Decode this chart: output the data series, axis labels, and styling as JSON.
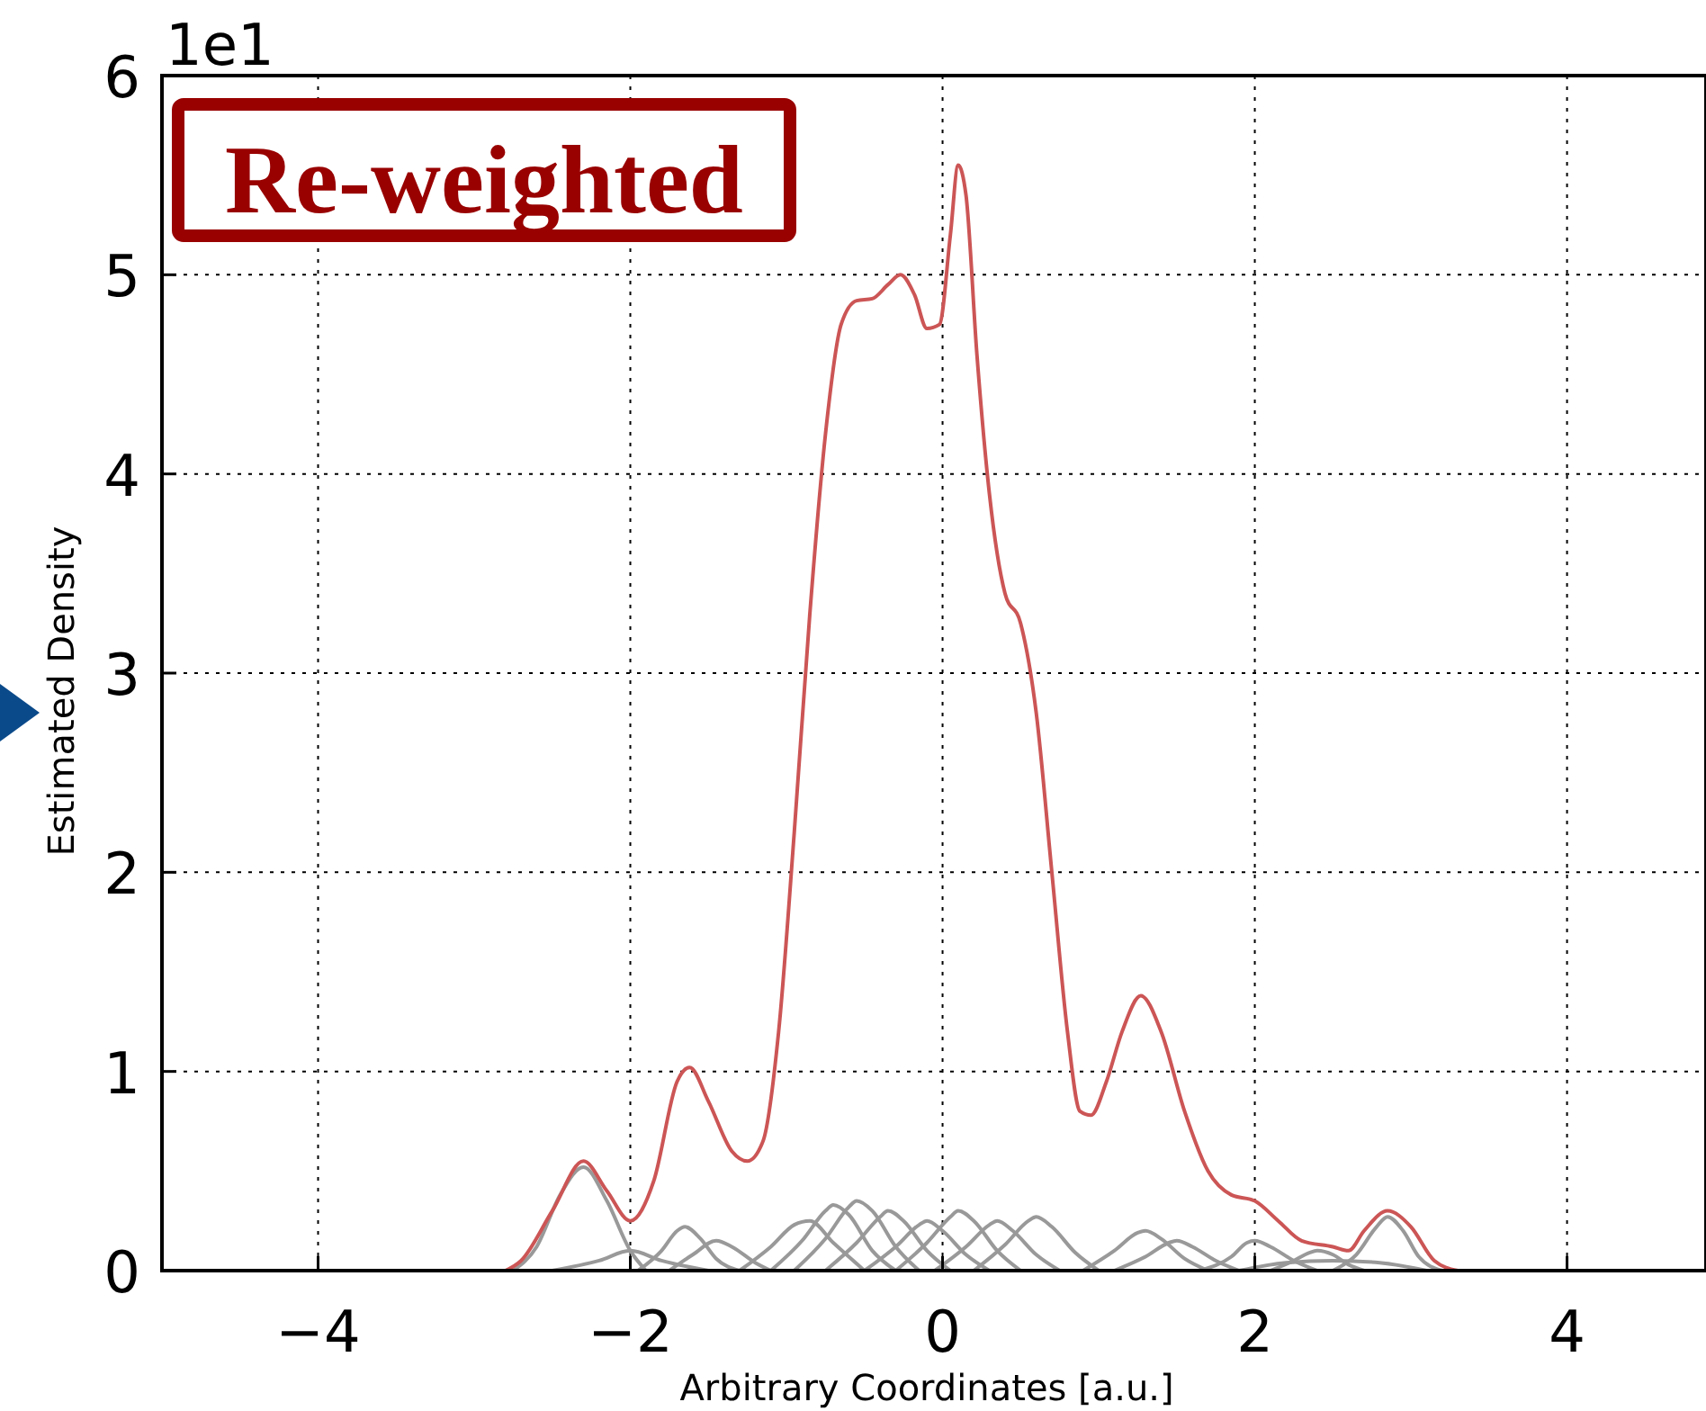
{
  "chart_data": {
    "type": "line",
    "title": "Re-weighted",
    "xlabel": "Arbitrary Coordinates [a.u.]",
    "ylabel": "Estimated Density",
    "annotations": [
      "1e1"
    ],
    "xlim": [
      -5,
      4.89
    ],
    "ylim": [
      0,
      6
    ],
    "xticks": [
      {
        "value": -4,
        "label": "−4"
      },
      {
        "value": -2,
        "label": "−2"
      },
      0,
      2,
      4
    ],
    "yticks": [
      0,
      1,
      2,
      3,
      4,
      5,
      6
    ],
    "grid": true,
    "line_style": "solid",
    "series": [
      {
        "color": "#999999",
        "x": [
          -2.75,
          -2.6,
          -2.45,
          -2.3,
          -2.15,
          -2.0,
          -1.9
        ],
        "values": [
          0,
          0.12,
          0.38,
          0.52,
          0.35,
          0.1,
          0
        ]
      },
      {
        "color": "#999999",
        "x": [
          -2.5,
          -2.2,
          -2.0,
          -1.8,
          -1.5
        ],
        "values": [
          0,
          0.05,
          0.1,
          0.05,
          0
        ]
      },
      {
        "color": "#999999",
        "x": [
          -1.95,
          -1.8,
          -1.7,
          -1.65,
          -1.55,
          -1.45,
          -1.3
        ],
        "values": [
          0,
          0.1,
          0.2,
          0.22,
          0.16,
          0.06,
          0
        ]
      },
      {
        "color": "#999999",
        "x": [
          -1.75,
          -1.6,
          -1.45,
          -1.35,
          -1.2,
          -1.1
        ],
        "values": [
          0,
          0.08,
          0.15,
          0.12,
          0.04,
          0
        ]
      },
      {
        "color": "#999999",
        "x": [
          -1.3,
          -1.1,
          -0.95,
          -0.85,
          -0.7,
          -0.5
        ],
        "values": [
          0,
          0.12,
          0.23,
          0.25,
          0.14,
          0
        ]
      },
      {
        "color": "#999999",
        "x": [
          -1.1,
          -0.9,
          -0.75,
          -0.7,
          -0.6,
          -0.45,
          -0.3
        ],
        "values": [
          0,
          0.15,
          0.3,
          0.33,
          0.28,
          0.1,
          0
        ]
      },
      {
        "color": "#999999",
        "x": [
          -0.95,
          -0.75,
          -0.6,
          -0.55,
          -0.45,
          -0.3,
          -0.15
        ],
        "values": [
          0,
          0.16,
          0.32,
          0.35,
          0.3,
          0.12,
          0
        ]
      },
      {
        "color": "#999999",
        "x": [
          -0.75,
          -0.55,
          -0.4,
          -0.35,
          -0.25,
          -0.1,
          0.05
        ],
        "values": [
          0,
          0.14,
          0.27,
          0.3,
          0.25,
          0.1,
          0
        ]
      },
      {
        "color": "#999999",
        "x": [
          -0.5,
          -0.3,
          -0.15,
          -0.1,
          0,
          0.15,
          0.3
        ],
        "values": [
          0,
          0.12,
          0.23,
          0.25,
          0.2,
          0.08,
          0
        ]
      },
      {
        "color": "#999999",
        "x": [
          -0.3,
          -0.1,
          0.05,
          0.1,
          0.2,
          0.35,
          0.5
        ],
        "values": [
          0,
          0.14,
          0.27,
          0.3,
          0.25,
          0.1,
          0
        ]
      },
      {
        "color": "#999999",
        "x": [
          -0.05,
          0.15,
          0.3,
          0.35,
          0.45,
          0.6,
          0.75
        ],
        "values": [
          0,
          0.12,
          0.23,
          0.25,
          0.2,
          0.08,
          0
        ]
      },
      {
        "color": "#999999",
        "x": [
          0.2,
          0.4,
          0.55,
          0.6,
          0.7,
          0.85,
          1.0
        ],
        "values": [
          0,
          0.13,
          0.25,
          0.27,
          0.22,
          0.09,
          0
        ]
      },
      {
        "color": "#999999",
        "x": [
          0.9,
          1.1,
          1.25,
          1.3,
          1.4,
          1.55,
          1.7
        ],
        "values": [
          0,
          0.1,
          0.19,
          0.2,
          0.16,
          0.06,
          0
        ]
      },
      {
        "color": "#999999",
        "x": [
          1.1,
          1.3,
          1.45,
          1.5,
          1.6,
          1.75,
          1.9
        ],
        "values": [
          0,
          0.07,
          0.14,
          0.15,
          0.12,
          0.05,
          0
        ]
      },
      {
        "color": "#999999",
        "x": [
          1.65,
          1.85,
          1.95,
          2.0,
          2.1,
          2.25,
          2.4
        ],
        "values": [
          0,
          0.07,
          0.14,
          0.15,
          0.12,
          0.05,
          0
        ]
      },
      {
        "color": "#999999",
        "x": [
          2.1,
          2.25,
          2.35,
          2.4,
          2.5,
          2.6,
          2.7
        ],
        "values": [
          0,
          0.05,
          0.09,
          0.1,
          0.08,
          0.03,
          0
        ]
      },
      {
        "color": "#999999",
        "x": [
          1.9,
          2.2,
          2.5,
          2.8,
          3.1
        ],
        "values": [
          0,
          0.04,
          0.05,
          0.04,
          0
        ]
      },
      {
        "color": "#999999",
        "x": [
          2.5,
          2.65,
          2.78,
          2.85,
          2.95,
          3.05,
          3.2
        ],
        "values": [
          0,
          0.08,
          0.22,
          0.27,
          0.2,
          0.07,
          0
        ]
      },
      {
        "color": "#cc5555",
        "x": [
          -2.8,
          -2.7,
          -2.5,
          -2.3,
          -2.15,
          -2.0,
          -1.85,
          -1.7,
          -1.62,
          -1.5,
          -1.35,
          -1.25,
          -1.15,
          -1.05,
          -0.95,
          -0.85,
          -0.75,
          -0.65,
          -0.55,
          -0.45,
          -0.35,
          -0.27,
          -0.18,
          -0.1,
          -0.02,
          0.05,
          0.1,
          0.15,
          0.22,
          0.3,
          0.4,
          0.5,
          0.6,
          0.7,
          0.8,
          0.88,
          0.95,
          1.05,
          1.15,
          1.27,
          1.4,
          1.55,
          1.7,
          1.85,
          2.0,
          2.15,
          2.3,
          2.5,
          2.6,
          2.7,
          2.85,
          3.0,
          3.15,
          3.3
        ],
        "values": [
          0,
          0.05,
          0.3,
          0.55,
          0.4,
          0.25,
          0.45,
          0.95,
          1.02,
          0.85,
          0.6,
          0.55,
          0.65,
          1.2,
          2.2,
          3.3,
          4.2,
          4.75,
          4.87,
          4.88,
          4.95,
          5.0,
          4.9,
          4.73,
          4.75,
          5.2,
          5.55,
          5.4,
          4.6,
          3.9,
          3.4,
          3.25,
          2.8,
          2.0,
          1.2,
          0.8,
          0.78,
          0.95,
          1.2,
          1.38,
          1.2,
          0.8,
          0.5,
          0.38,
          0.35,
          0.25,
          0.15,
          0.12,
          0.1,
          0.2,
          0.3,
          0.22,
          0.05,
          0
        ]
      }
    ]
  }
}
